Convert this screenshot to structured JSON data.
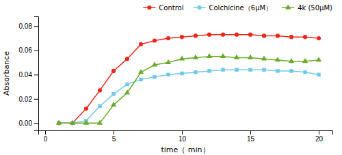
{
  "chart_data": {
    "type": "line",
    "x": [
      1,
      2,
      3,
      4,
      5,
      6,
      7,
      8,
      9,
      10,
      11,
      12,
      13,
      14,
      15,
      16,
      17,
      18,
      19,
      20
    ],
    "series": [
      {
        "name": "Control",
        "color": "#e8291c",
        "marker": "circle",
        "values": [
          0.0,
          0.0,
          0.012,
          0.027,
          0.043,
          0.053,
          0.065,
          0.068,
          0.07,
          0.071,
          0.072,
          0.073,
          0.073,
          0.073,
          0.073,
          0.072,
          0.072,
          0.071,
          0.071,
          0.07
        ]
      },
      {
        "name": "Colchicine（6μM）",
        "color": "#70c8e8",
        "marker": "square",
        "values": [
          0.0,
          0.0,
          0.002,
          0.014,
          0.024,
          0.032,
          0.036,
          0.038,
          0.04,
          0.041,
          0.042,
          0.043,
          0.044,
          0.044,
          0.044,
          0.044,
          0.043,
          0.043,
          0.042,
          0.04
        ]
      },
      {
        "name": "4k (50μM)",
        "color": "#6aaa2a",
        "marker": "triangle",
        "values": [
          0.0,
          0.0,
          0.0,
          0.0,
          0.015,
          0.025,
          0.042,
          0.048,
          0.05,
          0.053,
          0.054,
          0.055,
          0.055,
          0.054,
          0.054,
          0.053,
          0.052,
          0.051,
          0.051,
          0.052
        ]
      }
    ],
    "x_label": "time（ min）",
    "y_label": "Absorbance",
    "xlim": [
      -0.5,
      21
    ],
    "ylim": [
      -0.006,
      0.088
    ],
    "xticks": [
      0,
      5,
      10,
      15,
      20
    ],
    "yticks": [
      {
        "value": 0,
        "label": "0.00"
      },
      {
        "value": 0.02,
        "label": "0.02"
      },
      {
        "value": 0.04,
        "label": "0.04"
      },
      {
        "value": 0.06,
        "label": "0.06"
      },
      {
        "value": 0.08,
        "label": "0.08"
      }
    ],
    "grid": false,
    "legend": "upper right"
  }
}
